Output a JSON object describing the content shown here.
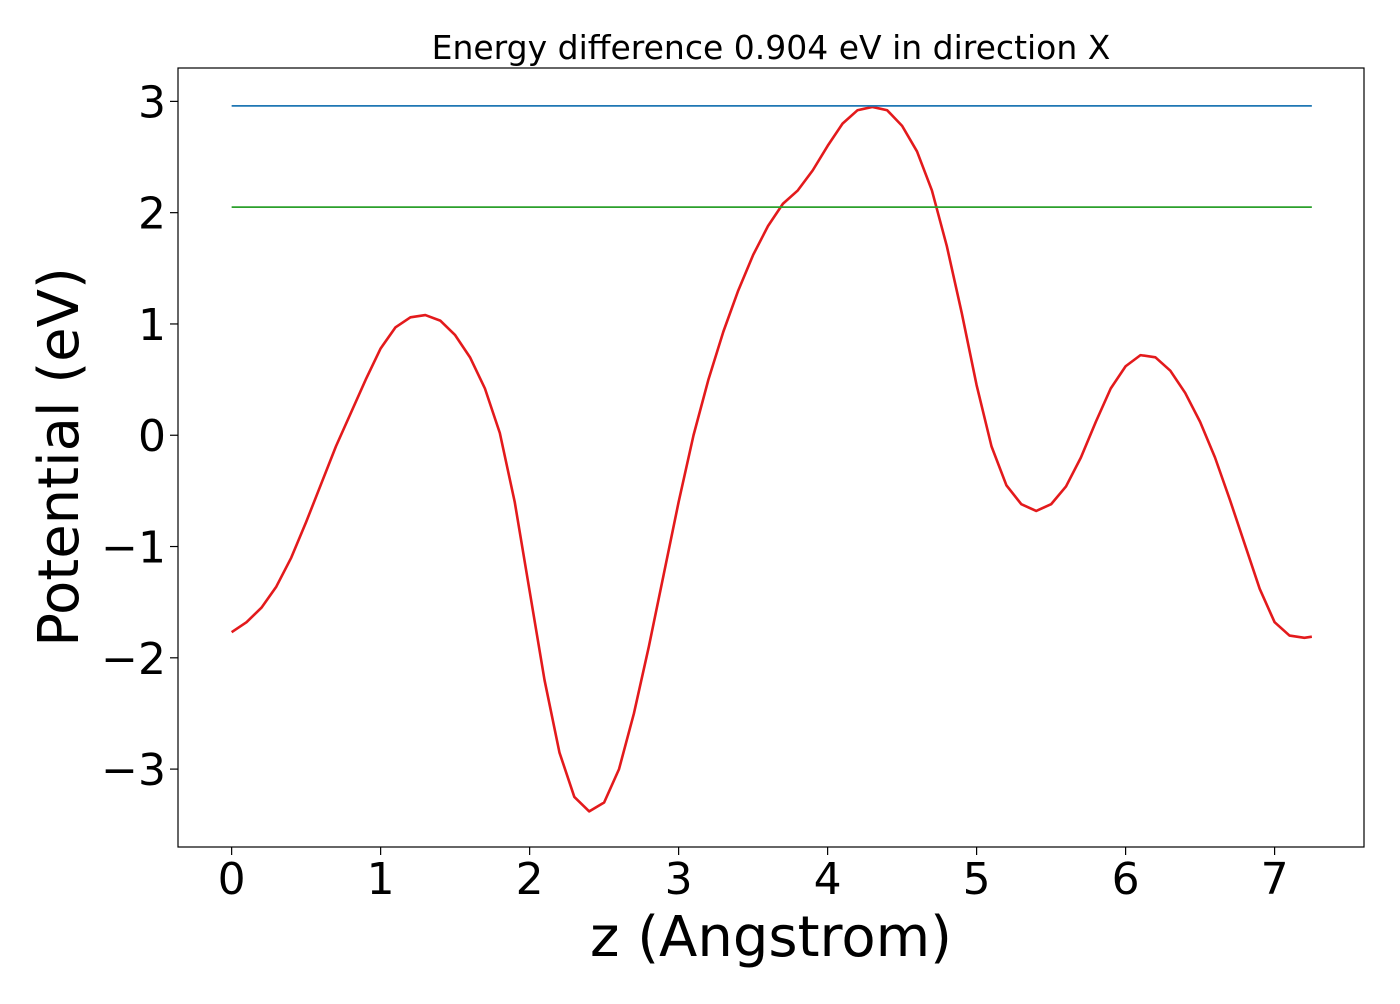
{
  "chart_data": {
    "type": "line",
    "title": "Energy difference 0.904 eV in direction X",
    "xlabel": "z (Angstrom)",
    "ylabel": "Potential (eV)",
    "xlim": [
      -0.36,
      7.6
    ],
    "ylim": [
      -3.7,
      3.3
    ],
    "xticks": [
      0,
      1,
      2,
      3,
      4,
      5,
      6,
      7
    ],
    "yticks": [
      -3,
      -2,
      -1,
      0,
      1,
      2,
      3
    ],
    "xtick_labels": [
      "0",
      "1",
      "2",
      "3",
      "4",
      "5",
      "6",
      "7"
    ],
    "ytick_labels": [
      "−3",
      "−2",
      "−1",
      "0",
      "1",
      "2",
      "3"
    ],
    "grid": false,
    "colors": {
      "potential": "#e31a1c",
      "max_line": "#1f77b4",
      "level_line": "#2ca02c"
    },
    "series": [
      {
        "key": "potential",
        "x": [
          0.0,
          0.1,
          0.2,
          0.3,
          0.4,
          0.5,
          0.6,
          0.7,
          0.8,
          0.9,
          1.0,
          1.1,
          1.2,
          1.3,
          1.4,
          1.5,
          1.6,
          1.7,
          1.8,
          1.9,
          2.0,
          2.1,
          2.2,
          2.3,
          2.4,
          2.5,
          2.6,
          2.7,
          2.8,
          2.9,
          3.0,
          3.1,
          3.2,
          3.3,
          3.4,
          3.5,
          3.6,
          3.7,
          3.8,
          3.9,
          4.0,
          4.1,
          4.2,
          4.3,
          4.4,
          4.5,
          4.6,
          4.7,
          4.8,
          4.9,
          5.0,
          5.1,
          5.2,
          5.3,
          5.4,
          5.5,
          5.6,
          5.7,
          5.8,
          5.9,
          6.0,
          6.1,
          6.2,
          6.3,
          6.4,
          6.5,
          6.6,
          6.7,
          6.8,
          6.9,
          7.0,
          7.1,
          7.2,
          7.25
        ],
        "y": [
          -1.77,
          -1.68,
          -1.55,
          -1.36,
          -1.1,
          -0.78,
          -0.44,
          -0.1,
          0.2,
          0.5,
          0.78,
          0.97,
          1.06,
          1.08,
          1.03,
          0.9,
          0.7,
          0.42,
          0.02,
          -0.6,
          -1.4,
          -2.2,
          -2.85,
          -3.25,
          -3.38,
          -3.3,
          -3.0,
          -2.5,
          -1.9,
          -1.25,
          -0.6,
          0.0,
          0.5,
          0.93,
          1.3,
          1.62,
          1.88,
          2.08,
          2.2,
          2.38,
          2.6,
          2.8,
          2.92,
          2.95,
          2.92,
          2.78,
          2.55,
          2.2,
          1.7,
          1.1,
          0.45,
          -0.1,
          -0.45,
          -0.62,
          -0.68,
          -0.62,
          -0.46,
          -0.2,
          0.12,
          0.42,
          0.62,
          0.72,
          0.7,
          0.58,
          0.38,
          0.12,
          -0.2,
          -0.58,
          -0.98,
          -1.38,
          -1.68,
          -1.8,
          -1.82,
          -1.81
        ]
      },
      {
        "key": "max_line",
        "x": [
          0.0,
          7.25
        ],
        "y": [
          2.96,
          2.96
        ]
      },
      {
        "key": "level_line",
        "x": [
          0.0,
          7.25
        ],
        "y": [
          2.05,
          2.05
        ]
      }
    ]
  }
}
